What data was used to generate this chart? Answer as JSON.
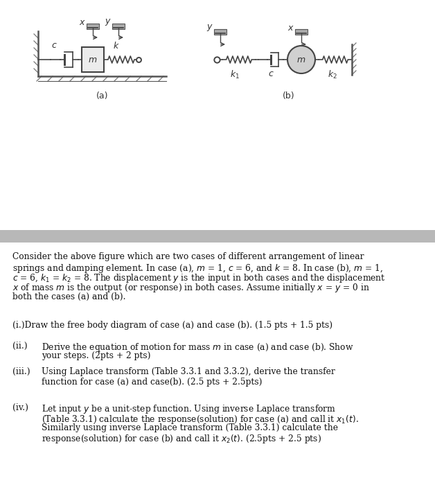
{
  "bg_color": "#ffffff",
  "gray_band_color": "#b8b8b8",
  "text_color": "#1a1a1a",
  "fig_width": 6.28,
  "fig_height": 7.0,
  "label_a": "(a)",
  "label_b": "(b)",
  "para_line1": "Consider the above figure which are two cases of different arrangement of linear",
  "para_line2": "springs and damping element. In case (a), $m$ = 1, $c$ = 6, and $k$ = 8. In case (b), $m$ = 1,",
  "para_line3": "$c$ = 6, $k_1$ = $k_2$ = 8. The displacement $y$ is the input in both cases and the displacement",
  "para_line4": "$x$ of mass $m$ is the output (or response) in both cases. Assume initially $x$ = $y$ = 0 in",
  "para_line5": "both the cases (a) and (b).",
  "item_i": "(i.)Draw the free body diagram of case (a) and case (b). (1.5 pts + 1.5 pts)",
  "item_ii_label": "(ii.)",
  "item_ii_1": "Derive the equation of motion for mass $m$ in case (a) and case (b). Show",
  "item_ii_2": "your steps. (2pts + 2 pts)",
  "item_iii_label": "(iii.)",
  "item_iii_1": "Using Laplace transform (Table 3.3.1 and 3.3.2), derive the transfer",
  "item_iii_2": "function for case (a) and case(b). (2.5 pts + 2.5pts)",
  "item_iv_label": "(iv.)",
  "item_iv_1": "Let input $y$ be a unit-step function. Using inverse Laplace transform",
  "item_iv_2": "(Table 3.3.1) calculate the response(solution) for case (a) and call it $x_1(t)$.",
  "item_iv_3": "Similarly using inverse Laplace transform (Table 3.3.1) calculate the",
  "item_iv_4": "response(solution) for case (b) and call it $x_2(t)$. (2.5pts + 2.5 pts)"
}
